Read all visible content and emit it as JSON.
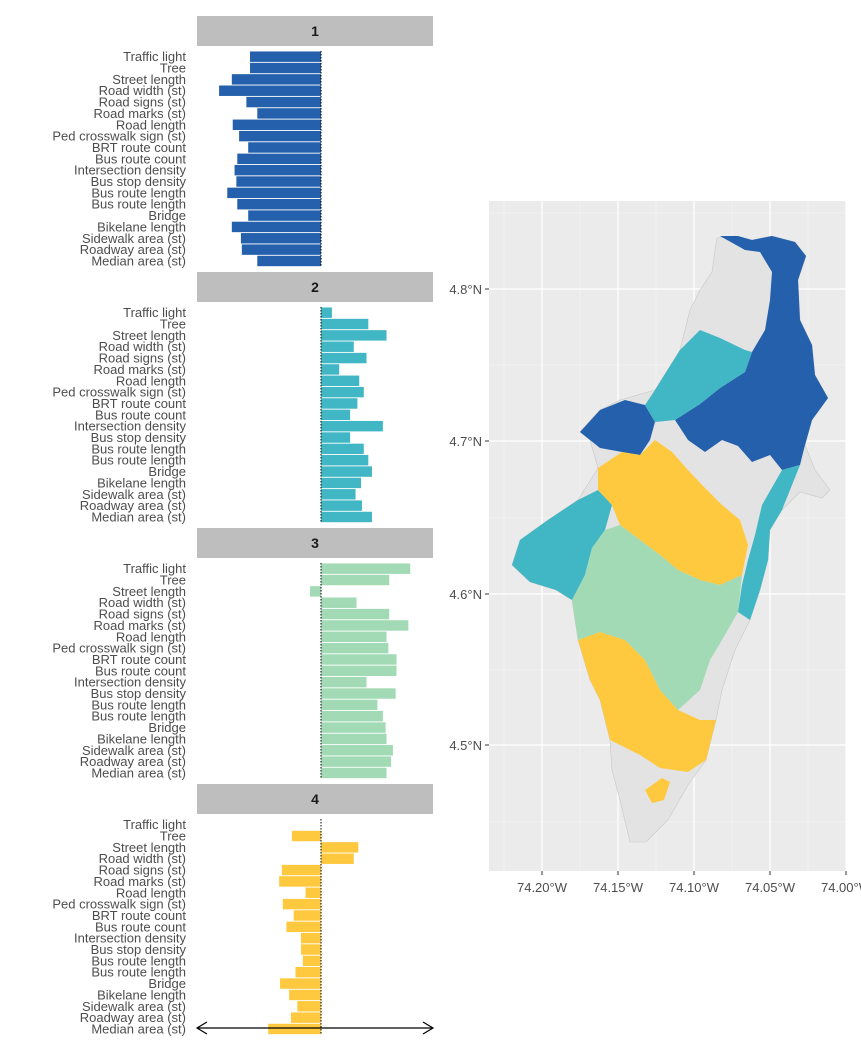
{
  "chart_data": [
    {
      "type": "bar",
      "orientation": "horizontal",
      "facets": [
        "1",
        "2",
        "3",
        "4"
      ],
      "categories": [
        "Traffic light",
        "Tree",
        "Street length",
        "Road width (st)",
        "Road signs (st)",
        "Road marks (st)",
        "Road length",
        "Ped crosswalk sign (st)",
        "BRT route count",
        "Bus route count",
        "Intersection density",
        "Bus stop density",
        "Bus route length",
        "Bus route length",
        "Bridge",
        "Bikelane length",
        "Sidewalk area (st)",
        "Roadway area (st)",
        "Median area (st)"
      ],
      "series": [
        {
          "facet": "1",
          "color": "#2460ab",
          "values": [
            -0.78,
            -0.78,
            -0.98,
            -1.12,
            -0.82,
            -0.7,
            -0.97,
            -0.9,
            -0.8,
            -0.92,
            -0.95,
            -0.93,
            -1.03,
            -0.92,
            -0.8,
            -0.98,
            -0.88,
            -0.87,
            -0.7
          ]
        },
        {
          "facet": "2",
          "color": "#41b6c4",
          "values": [
            0.12,
            0.52,
            0.72,
            0.36,
            0.5,
            0.2,
            0.42,
            0.47,
            0.4,
            0.32,
            0.68,
            0.32,
            0.47,
            0.52,
            0.56,
            0.44,
            0.38,
            0.45,
            0.56
          ]
        },
        {
          "facet": "3",
          "color": "#a1dab4",
          "values": [
            0.98,
            0.75,
            -0.12,
            0.39,
            0.75,
            0.96,
            0.72,
            0.74,
            0.83,
            0.83,
            0.5,
            0.82,
            0.62,
            0.68,
            0.71,
            0.72,
            0.79,
            0.77,
            0.72
          ]
        },
        {
          "facet": "4",
          "color": "#fec93f",
          "values": [
            0.0,
            -0.32,
            0.41,
            0.36,
            -0.43,
            -0.46,
            -0.17,
            -0.42,
            -0.3,
            -0.38,
            -0.22,
            -0.22,
            -0.2,
            -0.28,
            -0.45,
            -0.35,
            -0.26,
            -0.33,
            -0.58
          ]
        }
      ]
    },
    {
      "type": "map",
      "x_ticks": [
        "74.20°W",
        "74.15°W",
        "74.10°W",
        "74.05°W",
        "74.00°W"
      ],
      "y_ticks": [
        "4.8°N",
        "4.7°N",
        "4.6°N",
        "4.5°N"
      ],
      "cluster_colors": {
        "1": "#2460ab",
        "2": "#41b6c4",
        "3": "#a1dab4",
        "4": "#fec93f",
        "none": "#e6e6e6"
      }
    }
  ]
}
